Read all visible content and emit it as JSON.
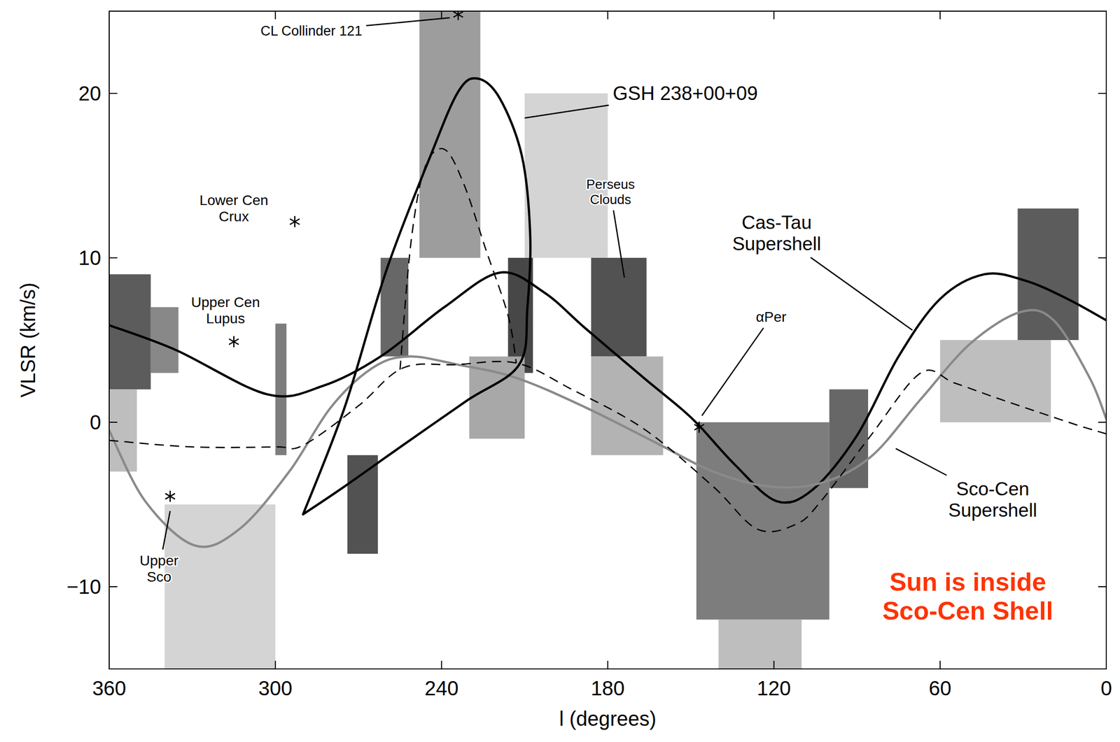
{
  "chart_data": {
    "type": "line",
    "x_label": "l (degrees)",
    "y_label": "VLSR (km/s)",
    "xlim": [
      360,
      0
    ],
    "ylim": [
      -15,
      25
    ],
    "xticks": [
      360,
      300,
      240,
      180,
      120,
      60,
      0
    ],
    "yticks": [
      {
        "value": -10,
        "label": "−10"
      },
      0,
      10,
      20
    ],
    "grid": false,
    "emission": [
      {
        "l": [
          360,
          345
        ],
        "v": [
          2,
          9
        ],
        "level": 0.75
      },
      {
        "l": [
          345,
          335
        ],
        "v": [
          3,
          7
        ],
        "level": 0.55
      },
      {
        "l": [
          360,
          350
        ],
        "v": [
          -3,
          2
        ],
        "level": 0.3
      },
      {
        "l": [
          300,
          296
        ],
        "v": [
          -2,
          6
        ],
        "level": 0.6
      },
      {
        "l": [
          274,
          263
        ],
        "v": [
          -8,
          -2
        ],
        "level": 0.8
      },
      {
        "l": [
          262,
          252
        ],
        "v": [
          4,
          10
        ],
        "level": 0.7
      },
      {
        "l": [
          248,
          226
        ],
        "v": [
          10,
          25
        ],
        "level": 0.45
      },
      {
        "l": [
          216,
          207
        ],
        "v": [
          3,
          10
        ],
        "level": 0.85
      },
      {
        "l": [
          230,
          210
        ],
        "v": [
          -1,
          4
        ],
        "level": 0.4
      },
      {
        "l": [
          186,
          166
        ],
        "v": [
          4,
          10
        ],
        "level": 0.8
      },
      {
        "l": [
          186,
          160
        ],
        "v": [
          -2,
          4
        ],
        "level": 0.35
      },
      {
        "l": [
          148,
          100
        ],
        "v": [
          -12,
          0
        ],
        "level": 0.6
      },
      {
        "l": [
          140,
          110
        ],
        "v": [
          -15,
          -12
        ],
        "level": 0.3
      },
      {
        "l": [
          100,
          86
        ],
        "v": [
          -4,
          2
        ],
        "level": 0.7
      },
      {
        "l": [
          32,
          10
        ],
        "v": [
          5,
          13
        ],
        "level": 0.75
      },
      {
        "l": [
          60,
          20
        ],
        "v": [
          0,
          5
        ],
        "level": 0.3
      },
      {
        "l": [
          210,
          180
        ],
        "v": [
          10,
          20
        ],
        "level": 0.2
      },
      {
        "l": [
          340,
          300
        ],
        "v": [
          -15,
          -5
        ],
        "level": 0.2
      }
    ],
    "series": [
      {
        "name": null,
        "color": "#000000",
        "line_style": "solid",
        "x": [
          360,
          336,
          303,
          283,
          262,
          239,
          219,
          203,
          188,
          167,
          154,
          147,
          134,
          119,
          106,
          90,
          75,
          60,
          44,
          29,
          14,
          0
        ],
        "values": [
          5.9,
          4.4,
          1.7,
          2.2,
          4.0,
          7.0,
          9.1,
          7.9,
          5.7,
          2.7,
          0.9,
          -0.2,
          -2.6,
          -4.8,
          -4.1,
          -0.8,
          4.0,
          7.5,
          9.0,
          8.6,
          7.5,
          6.2
        ]
      },
      {
        "name": null,
        "color": "#8a8a8a",
        "line_style": "solid",
        "x": [
          360,
          347,
          329,
          313,
          295,
          280,
          265,
          252,
          234,
          213,
          188,
          162,
          142,
          122,
          103,
          85,
          67,
          49,
          31,
          19,
          6,
          0
        ],
        "values": [
          -0.5,
          -4.8,
          -7.5,
          -6.5,
          -3.0,
          0.9,
          3.3,
          4.0,
          3.5,
          2.7,
          0.9,
          -1.3,
          -3.0,
          -3.9,
          -3.7,
          -2.1,
          1.4,
          4.8,
          6.7,
          6.2,
          2.7,
          0.2
        ]
      },
      {
        "name": null,
        "color": "#000000",
        "line_style": "dashed",
        "x": [
          360,
          330,
          300,
          290,
          270,
          254,
          235,
          213,
          193,
          167,
          142,
          126,
          112,
          103,
          85,
          67,
          55,
          40,
          26,
          10,
          0
        ],
        "values": [
          -1.1,
          -1.5,
          -1.5,
          -1.4,
          1.0,
          3.3,
          3.5,
          3.6,
          2.0,
          -0.4,
          -3.9,
          -6.5,
          -6.2,
          -4.8,
          -0.8,
          3.0,
          2.4,
          1.5,
          0.7,
          -0.2,
          -0.7
        ]
      },
      {
        "name": null,
        "color": "#000000",
        "line_style": "solid",
        "x": [
          290,
          275,
          260,
          244,
          234,
          227,
          219,
          211,
          208,
          209,
          212,
          231,
          254,
          275,
          290
        ],
        "values": [
          -5.6,
          0.9,
          9.2,
          16.2,
          20.1,
          20.9,
          19.7,
          16.2,
          11.4,
          7.0,
          3.5,
          1.3,
          -1.4,
          -3.9,
          -5.6
        ]
      },
      {
        "name": null,
        "color": "#000000",
        "line_style": "dashed",
        "x": [
          255,
          251,
          246,
          239,
          232,
          224,
          216,
          213
        ],
        "values": [
          3.2,
          11.0,
          15.5,
          16.6,
          14.5,
          10.5,
          6.5,
          3.6
        ]
      },
      {
        "name": null,
        "color": "#000000",
        "type": "scatter",
        "marker": "asterisk",
        "x": [
          234,
          293,
          315,
          338,
          147
        ],
        "values": [
          24.8,
          12.2,
          4.9,
          -4.5,
          -0.3
        ]
      }
    ],
    "annotations": [
      {
        "text": "CL Collinder 121",
        "l": 287,
        "v": 23.8,
        "target": [
          237,
          24.6
        ]
      },
      {
        "text": "GSH 238+00+09",
        "l": 152,
        "v": 20.0,
        "target": [
          210,
          18.5
        ]
      },
      {
        "text": "Lower Cen\nCrux",
        "l": 315,
        "v": 13.0
      },
      {
        "text": "Upper Cen\nLupus",
        "l": 318,
        "v": 6.8
      },
      {
        "text": "Upper\nSco",
        "l": 342,
        "v": -8.9,
        "target": [
          338,
          -5.4
        ]
      },
      {
        "text": "Perseus\nClouds",
        "l": 179,
        "v": 14.0,
        "target": [
          174,
          8.8
        ]
      },
      {
        "text": "αPer",
        "l": 121,
        "v": 6.4,
        "target": [
          146,
          0.4
        ]
      },
      {
        "text": "Cas-Tau\nSupershell",
        "l": 119,
        "v": 11.5,
        "target": [
          70,
          5.6
        ]
      },
      {
        "text": "Sco-Cen\nSupershell",
        "l": 41,
        "v": -4.7,
        "target": [
          76,
          -1.6
        ]
      },
      {
        "text": "Sun is inside\nSco-Cen Shell",
        "l": 50,
        "v": -10.6,
        "color": "#ff3300"
      }
    ]
  }
}
